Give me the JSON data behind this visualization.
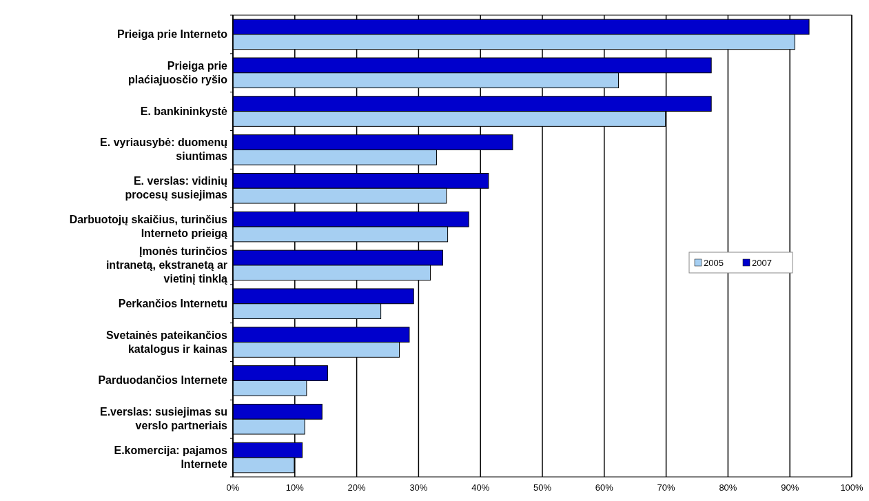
{
  "chart_data": {
    "type": "bar",
    "orientation": "horizontal",
    "categories": [
      "Prieiga prie Interneto",
      "Prieiga prie\nplaćiajuosčio ryšio",
      "E. bankininkystė",
      "E. vyriausybė: duomenų\nsiuntimas",
      "E. verslas: vidinių\nprocesų susiejimas",
      "Darbuotojų skaičius, turinčius\nInterneto prieigą",
      "Įmonės turinčios\nintranetą, ekstranetą ar\nvietinį tinklą",
      "Perkančios Internetu",
      "Svetainės pateikančios\nkatalogus ir kainas",
      "Parduodančios Internete",
      "E.verslas: susiejimas su\nverslo partneriais",
      "E.komercija: pajamos\nInternete"
    ],
    "series": [
      {
        "name": "2007",
        "color": "#0000cc",
        "values": [
          93.1,
          77.3,
          77.3,
          45.2,
          41.3,
          38.1,
          33.9,
          29.2,
          28.5,
          15.3,
          14.4,
          11.2
        ]
      },
      {
        "name": "2005",
        "color": "#a6cff2",
        "values": [
          90.8,
          62.3,
          69.9,
          32.9,
          34.5,
          34.7,
          31.9,
          23.9,
          26.9,
          11.9,
          11.6,
          9.9
        ]
      }
    ],
    "xlim": [
      0,
      100
    ],
    "xticks": [
      {
        "value": 0,
        "label": "0%"
      },
      {
        "value": 10,
        "label": "10%"
      },
      {
        "value": 20,
        "label": "20%"
      },
      {
        "value": 30,
        "label": "30%"
      },
      {
        "value": 40,
        "label": "40%"
      },
      {
        "value": 50,
        "label": "50%"
      },
      {
        "value": 60,
        "label": "60%"
      },
      {
        "value": 70,
        "label": "70%"
      },
      {
        "value": 80,
        "label": "80%"
      },
      {
        "value": 90,
        "label": "90%"
      },
      {
        "value": 100,
        "label": "100%"
      }
    ],
    "grid": "x",
    "legend": "right"
  }
}
